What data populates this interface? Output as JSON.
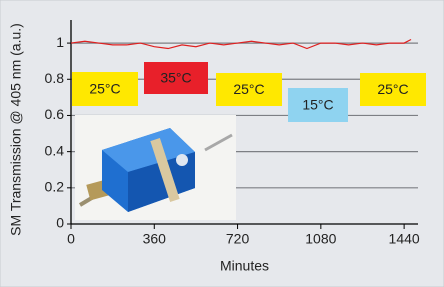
{
  "chart_data": {
    "type": "line",
    "x_label": "Minutes",
    "y_label": "SM Transmission @ 405 nm (a.u.)",
    "x": [
      0,
      60,
      120,
      180,
      240,
      300,
      360,
      420,
      480,
      540,
      600,
      660,
      720,
      780,
      840,
      900,
      960,
      1020,
      1080,
      1140,
      1200,
      1260,
      1320,
      1380,
      1440,
      1470
    ],
    "series": [
      {
        "color": "#e02020",
        "values": [
          1.0,
          1.01,
          1.0,
          0.99,
          0.99,
          1.0,
          0.98,
          0.97,
          0.99,
          0.98,
          1.0,
          0.99,
          1.0,
          1.01,
          1.0,
          0.99,
          1.0,
          0.97,
          1.0,
          1.0,
          0.99,
          1.0,
          0.99,
          1.0,
          1.0,
          1.02
        ]
      }
    ],
    "xlim": [
      0,
      1500
    ],
    "xticks": [
      0,
      360,
      720,
      1080,
      1440
    ],
    "ylim": [
      0,
      1.1
    ],
    "yticks": [
      0,
      0.2,
      0.4,
      0.6,
      0.8,
      1
    ],
    "grid": true,
    "annotations": [
      {
        "text": "25°C",
        "color": "#ffe800"
      },
      {
        "text": "35°C",
        "color": "#e8202a"
      },
      {
        "text": "25°C",
        "color": "#ffe800"
      },
      {
        "text": "15°C",
        "color": "#8fd3f0"
      },
      {
        "text": "25°C",
        "color": "#ffe800"
      }
    ]
  }
}
